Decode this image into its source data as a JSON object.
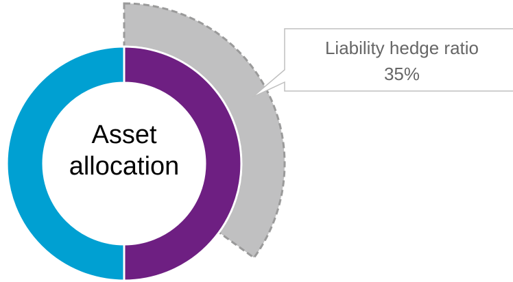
{
  "chart_data": {
    "type": "donut",
    "center_label": "Asset allocation",
    "values": [
      50,
      50
    ],
    "colors": [
      "#6e1f82",
      "#00a0d2"
    ],
    "outer_ring": {
      "name": "Liability hedge ratio",
      "value": 35,
      "value_label": "35%",
      "color": "#c0c0c1"
    }
  }
}
